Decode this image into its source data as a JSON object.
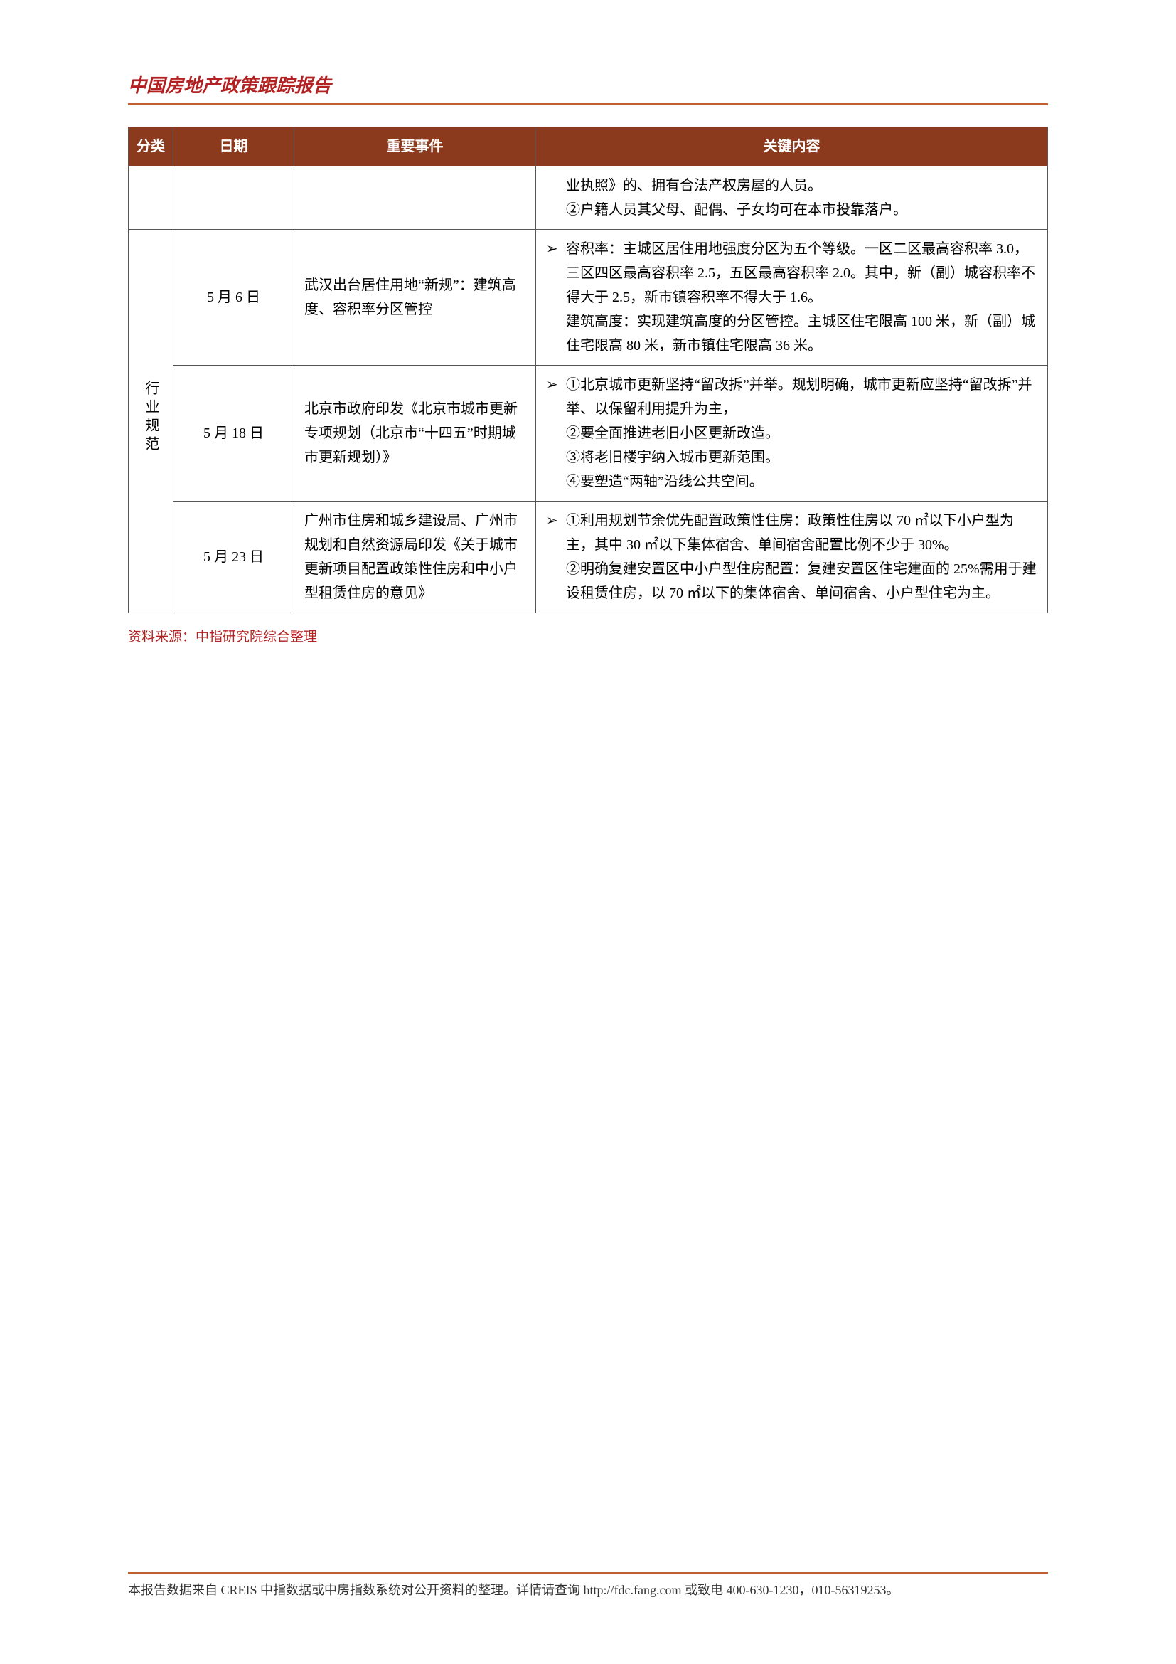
{
  "colors": {
    "header_text": "#b22222",
    "header_rule": "#c06030",
    "th_bg": "#8b3a1e",
    "th_text": "#ffffff",
    "border": "#555555",
    "source": "#b22222",
    "body_text": "#000000",
    "page_bg": "#ffffff"
  },
  "typography": {
    "title_fontsize": 26,
    "table_fontsize": 20,
    "source_fontsize": 19,
    "footer_fontsize": 18
  },
  "header": {
    "title": "中国房地产政策跟踪报告"
  },
  "table": {
    "columns": [
      "分类",
      "日期",
      "重要事件",
      "关键内容"
    ],
    "top_key": "业执照》的、拥有合法产权房屋的人员。\n②户籍人员其父母、配偶、子女均可在本市投靠落户。",
    "category_label": "行业规范",
    "rows": [
      {
        "date": "5 月 6 日",
        "event": "武汉出台居住用地“新规”：建筑高度、容积率分区管控",
        "key": "容积率：主城区居住用地强度分区为五个等级。一区二区最高容积率 3.0，三区四区最高容积率 2.5，五区最高容积率 2.0。其中，新（副）城容积率不得大于 2.5，新市镇容积率不得大于 1.6。\n建筑高度：实现建筑高度的分区管控。主城区住宅限高 100 米，新（副）城住宅限高 80 米，新市镇住宅限高 36 米。"
      },
      {
        "date": "5 月 18 日",
        "event": "北京市政府印发《北京市城市更新专项规划（北京市“十四五”时期城市更新规划）》",
        "key": "①北京城市更新坚持“留改拆”并举。规划明确，城市更新应坚持“留改拆”并举、以保留利用提升为主，\n②要全面推进老旧小区更新改造。\n③将老旧楼宇纳入城市更新范围。\n④要塑造“两轴”沿线公共空间。"
      },
      {
        "date": "5 月 23 日",
        "event": "广州市住房和城乡建设局、广州市规划和自然资源局印发《关于城市更新项目配置政策性住房和中小户型租赁住房的意见》",
        "key": "①利用规划节余优先配置政策性住房：政策性住房以 70 ㎡以下小户型为主，其中 30 ㎡以下集体宿舍、单间宿舍配置比例不少于 30%。\n②明确复建安置区中小户型住房配置：复建安置区住宅建面的 25%需用于建设租赁住房，以 70 ㎡以下的集体宿舍、单间宿舍、小户型住宅为主。"
      }
    ]
  },
  "source": "资料来源：中指研究院综合整理",
  "footer": "本报告数据来自 CREIS 中指数据或中房指数系统对公开资料的整理。详情请查询 http://fdc.fang.com 或致电 400-630-1230，010-56319253。",
  "arrow": "➢"
}
